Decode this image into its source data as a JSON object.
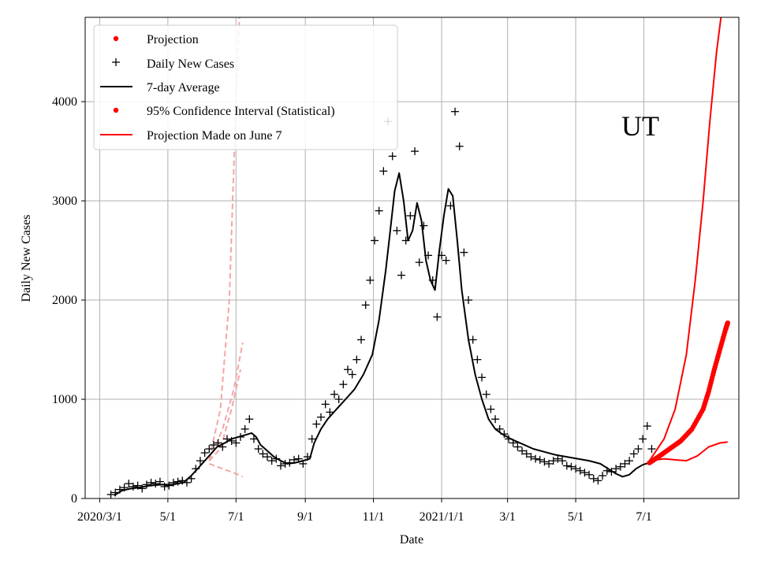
{
  "chart_data": {
    "type": "line",
    "state_label": "UT",
    "xlabel": "Date",
    "ylabel": "Daily New Cases",
    "xlim_days_since_2020_03_01": [
      -13,
      572
    ],
    "ylim": [
      0,
      4850
    ],
    "x_ticks": [
      {
        "day": 0,
        "label": "2020/3/1"
      },
      {
        "day": 61,
        "label": "5/1"
      },
      {
        "day": 122,
        "label": "7/1"
      },
      {
        "day": 184,
        "label": "9/1"
      },
      {
        "day": 245,
        "label": "11/1"
      },
      {
        "day": 306,
        "label": "2021/1/1"
      },
      {
        "day": 365,
        "label": "3/1"
      },
      {
        "day": 426,
        "label": "5/1"
      },
      {
        "day": 487,
        "label": "7/1"
      }
    ],
    "y_ticks": [
      {
        "value": 0,
        "label": "0"
      },
      {
        "value": 1000,
        "label": "1000"
      },
      {
        "value": 2000,
        "label": "2000"
      },
      {
        "value": 3000,
        "label": "3000"
      },
      {
        "value": 4000,
        "label": "4000"
      }
    ],
    "legend": [
      {
        "label": "Projection",
        "style": "red-dot"
      },
      {
        "label": "Daily New Cases",
        "style": "black-plus"
      },
      {
        "label": "7-day Average",
        "style": "black-line"
      },
      {
        "label": "95% Confidence Interval (Statistical)",
        "style": "red-dot"
      },
      {
        "label": "Projection Made on June 7",
        "style": "red-line"
      }
    ],
    "colors": {
      "data": "#000000",
      "projection": "#ff0000",
      "old_projection": "#f4a6a6"
    },
    "seven_day_average": {
      "days": [
        13,
        20,
        28,
        35,
        45,
        55,
        65,
        75,
        82,
        90,
        98,
        105,
        112,
        118,
        124,
        130,
        136,
        140,
        144,
        150,
        156,
        162,
        168,
        175,
        182,
        188,
        192,
        198,
        204,
        212,
        220,
        228,
        236,
        244,
        250,
        256,
        260,
        264,
        268,
        272,
        276,
        280,
        284,
        288,
        292,
        296,
        300,
        304,
        308,
        312,
        316,
        320,
        324,
        330,
        336,
        342,
        348,
        354,
        360,
        368,
        378,
        388,
        398,
        408,
        418,
        428,
        438,
        448,
        455,
        462,
        468,
        474,
        480,
        486,
        492
      ],
      "values": [
        30,
        80,
        100,
        110,
        130,
        140,
        140,
        160,
        230,
        330,
        430,
        520,
        560,
        600,
        620,
        640,
        660,
        620,
        540,
        480,
        420,
        380,
        350,
        360,
        380,
        400,
        560,
        700,
        800,
        900,
        1000,
        1100,
        1250,
        1450,
        1800,
        2300,
        2700,
        3100,
        3280,
        3000,
        2600,
        2700,
        2980,
        2800,
        2400,
        2200,
        2100,
        2500,
        2850,
        3120,
        3050,
        2600,
        2100,
        1600,
        1250,
        1000,
        800,
        700,
        650,
        600,
        550,
        500,
        470,
        440,
        420,
        400,
        380,
        350,
        300,
        250,
        220,
        240,
        300,
        340,
        360
      ]
    },
    "daily_new_cases_sample": {
      "days": [
        10,
        14,
        18,
        22,
        26,
        30,
        34,
        38,
        42,
        46,
        50,
        54,
        58,
        62,
        66,
        70,
        74,
        78,
        82,
        86,
        90,
        94,
        98,
        102,
        106,
        110,
        114,
        118,
        122,
        126,
        130,
        134,
        138,
        142,
        146,
        150,
        154,
        158,
        162,
        166,
        170,
        174,
        178,
        182,
        186,
        190,
        194,
        198,
        202,
        206,
        210,
        214,
        218,
        222,
        226,
        230,
        234,
        238,
        242,
        246,
        250,
        254,
        258,
        262,
        266,
        270,
        274,
        278,
        282,
        286,
        290,
        294,
        298,
        302,
        306,
        310,
        314,
        318,
        322,
        326,
        330,
        334,
        338,
        342,
        346,
        350,
        354,
        358,
        362,
        366,
        370,
        374,
        378,
        382,
        386,
        390,
        394,
        398,
        402,
        406,
        410,
        414,
        418,
        422,
        426,
        430,
        434,
        438,
        442,
        446,
        450,
        454,
        458,
        462,
        466,
        470,
        474,
        478,
        482,
        486,
        490,
        494
      ],
      "values": [
        40,
        60,
        90,
        110,
        150,
        120,
        130,
        100,
        140,
        160,
        150,
        170,
        120,
        130,
        160,
        170,
        180,
        160,
        200,
        300,
        380,
        460,
        500,
        540,
        560,
        520,
        600,
        580,
        560,
        620,
        700,
        800,
        600,
        500,
        450,
        420,
        380,
        400,
        330,
        350,
        360,
        390,
        400,
        350,
        420,
        600,
        750,
        820,
        950,
        870,
        1050,
        1000,
        1150,
        1300,
        1250,
        1400,
        1600,
        1950,
        2200,
        2600,
        2900,
        3300,
        3800,
        3450,
        2700,
        2250,
        2600,
        2850,
        3500,
        2380,
        2750,
        2450,
        2200,
        1830,
        2450,
        2400,
        2950,
        3900,
        3550,
        2480,
        2000,
        1600,
        1400,
        1220,
        1050,
        900,
        800,
        700,
        650,
        600,
        560,
        520,
        480,
        450,
        420,
        400,
        390,
        370,
        350,
        380,
        400,
        380,
        330,
        320,
        300,
        280,
        260,
        240,
        200,
        180,
        230,
        280,
        270,
        300,
        320,
        350,
        380,
        450,
        500,
        600,
        730,
        500
      ]
    },
    "projection_central": {
      "days": [
        492,
        500,
        510,
        520,
        530,
        540,
        545,
        550,
        555,
        560,
        562
      ],
      "values": [
        360,
        420,
        500,
        580,
        700,
        900,
        1080,
        1300,
        1500,
        1700,
        1770
      ]
    },
    "ci_upper": {
      "days": [
        492,
        505,
        515,
        525,
        533,
        540,
        546,
        552,
        556
      ],
      "values": [
        380,
        600,
        900,
        1450,
        2200,
        3000,
        3800,
        4500,
        4850
      ]
    },
    "ci_lower": {
      "days": [
        492,
        505,
        515,
        525,
        535,
        545,
        555,
        562
      ],
      "values": [
        380,
        400,
        390,
        380,
        430,
        520,
        560,
        570
      ]
    },
    "old_projection_june7": {
      "days": [
        [
          98,
          108,
          116,
          122,
          125
        ],
        [
          98,
          110,
          120,
          128
        ],
        [
          98,
          110,
          122,
          128
        ],
        [
          98,
          108,
          118,
          126
        ]
      ],
      "values": [
        [
          400,
          900,
          2000,
          4000,
          4850
        ],
        [
          380,
          700,
          1100,
          1570
        ],
        [
          350,
          300,
          250,
          220
        ],
        [
          380,
          500,
          900,
          1300
        ]
      ]
    }
  }
}
